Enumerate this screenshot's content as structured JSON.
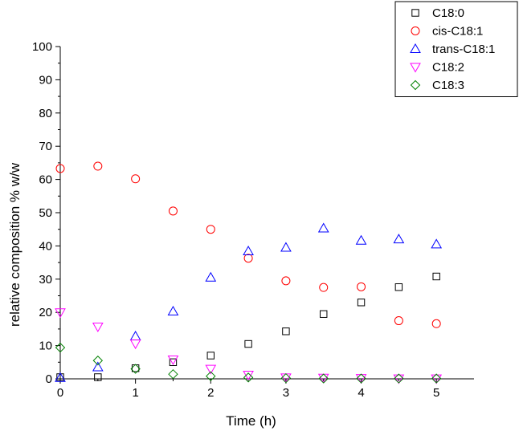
{
  "chart_data": {
    "type": "scatter",
    "xlabel": "Time (h)",
    "ylabel": "relative composition % w/w",
    "xlim": [
      0,
      5.5
    ],
    "ylim": [
      0,
      100
    ],
    "x_ticks": [
      "0",
      "1",
      "2",
      "3",
      "4",
      "5"
    ],
    "y_ticks": [
      "0",
      "10",
      "20",
      "30",
      "40",
      "50",
      "60",
      "70",
      "80",
      "90",
      "100"
    ],
    "legend_position": "top-right",
    "series": [
      {
        "name": "C18:0",
        "marker": "square",
        "color": "#000000",
        "x": [
          0,
          0.5,
          1,
          1.5,
          2,
          2.5,
          3,
          3.5,
          4,
          4.5,
          5
        ],
        "y": [
          0.5,
          0.5,
          3.2,
          5.0,
          7.0,
          10.5,
          14.3,
          19.5,
          23.0,
          27.6,
          30.8
        ]
      },
      {
        "name": "cis-C18:1",
        "marker": "circle",
        "color": "#ff0000",
        "x": [
          0,
          0.5,
          1,
          1.5,
          2,
          2.5,
          3,
          3.5,
          4,
          4.5,
          5
        ],
        "y": [
          63.3,
          64.0,
          60.2,
          50.5,
          45.0,
          36.3,
          29.5,
          27.5,
          27.7,
          17.5,
          16.6
        ]
      },
      {
        "name": "trans-C18:1",
        "marker": "triangle-up",
        "color": "#0000ff",
        "x": [
          0,
          0.5,
          1,
          1.5,
          2,
          2.5,
          3,
          3.5,
          4,
          4.5,
          5
        ],
        "y": [
          0.3,
          3.5,
          12.8,
          20.3,
          30.5,
          38.4,
          39.5,
          45.3,
          41.6,
          42.0,
          40.5
        ]
      },
      {
        "name": "C18:2",
        "marker": "triangle-down",
        "color": "#ff00ff",
        "x": [
          0,
          0.5,
          1,
          1.5,
          2,
          2.5,
          3,
          3.5,
          4,
          4.5,
          5
        ],
        "y": [
          20.0,
          15.7,
          10.6,
          5.8,
          3.0,
          1.2,
          0.4,
          0.3,
          0.2,
          0.1,
          0.1
        ]
      },
      {
        "name": "C18:3",
        "marker": "diamond",
        "color": "#008000",
        "x": [
          0,
          0.5,
          1,
          1.5,
          2,
          2.5,
          3,
          3.5,
          4,
          4.5,
          5
        ],
        "y": [
          9.4,
          5.5,
          3.0,
          1.4,
          0.8,
          0.4,
          0.2,
          0.1,
          0.1,
          0.1,
          0.1
        ]
      }
    ]
  }
}
